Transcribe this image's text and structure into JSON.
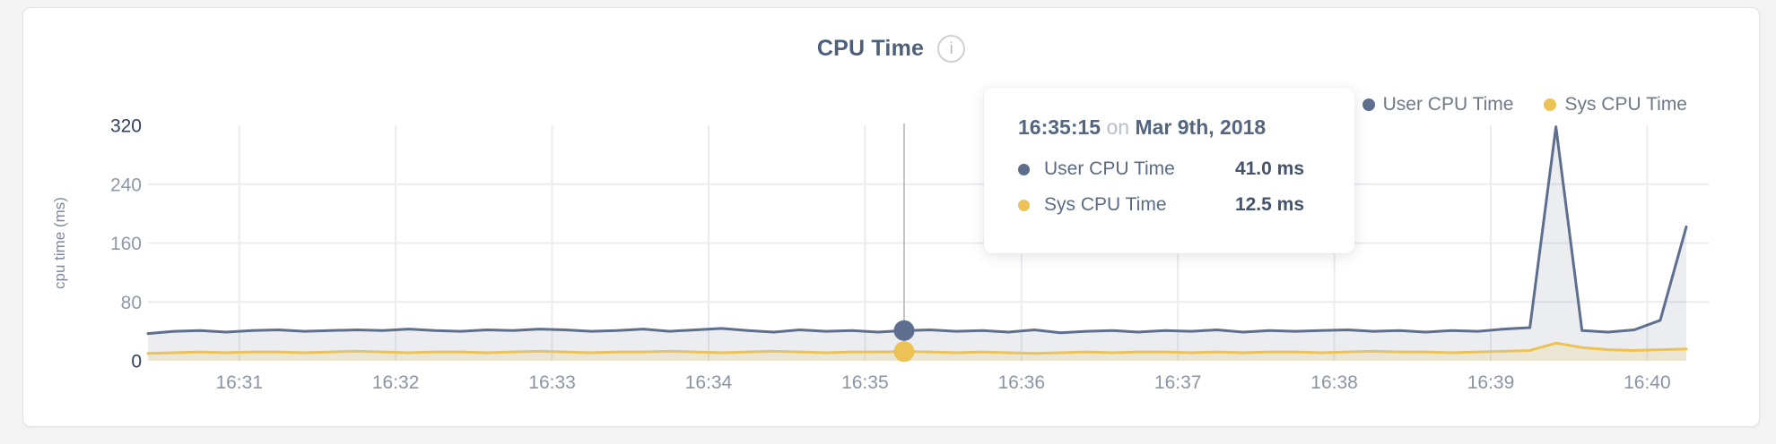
{
  "header": {
    "title": "CPU Time",
    "info_icon": "i"
  },
  "legend": {
    "items": [
      {
        "label": "User CPU Time",
        "color": "#5d6e8e"
      },
      {
        "label": "Sys CPU Time",
        "color": "#ecc254"
      }
    ]
  },
  "tooltip": {
    "time": "16:35:15",
    "connector": "on",
    "date": "Mar 9th, 2018",
    "rows": [
      {
        "label": "User CPU Time",
        "value": "41.0 ms",
        "color": "#5d6e8e"
      },
      {
        "label": "Sys CPU Time",
        "value": "12.5 ms",
        "color": "#ecc254"
      }
    ]
  },
  "chart_data": {
    "type": "area",
    "title": "CPU Time",
    "xlabel": "",
    "ylabel": "cpu time (ms)",
    "ylim": [
      0,
      320
    ],
    "y_ticks": [
      0,
      80,
      160,
      240,
      320
    ],
    "grid": true,
    "legend_position": "top-right",
    "time_start": "16:30:25",
    "interval_s": 10,
    "x_tick_labels": [
      "16:31",
      "16:32",
      "16:33",
      "16:34",
      "16:35",
      "16:36",
      "16:37",
      "16:38",
      "16:39",
      "16:40"
    ],
    "x_tick_offsets_s": [
      35,
      95,
      155,
      215,
      275,
      335,
      395,
      455,
      515,
      575
    ],
    "series": [
      {
        "name": "User CPU Time",
        "color": "#5d6e8e",
        "fill": "rgba(93,110,142,0.12)",
        "values": [
          37,
          40,
          41,
          39,
          41,
          42,
          40,
          41,
          42,
          41,
          43,
          41,
          40,
          42,
          41,
          43,
          42,
          40,
          41,
          43,
          40,
          42,
          44,
          41,
          39,
          42,
          40,
          41,
          39,
          41,
          42,
          40,
          41,
          39,
          42,
          38,
          40,
          41,
          39,
          41,
          40,
          42,
          39,
          41,
          40,
          41,
          42,
          40,
          41,
          39,
          41,
          40,
          43,
          45,
          318,
          41,
          39,
          42,
          55,
          182
        ]
      },
      {
        "name": "Sys CPU Time",
        "color": "#ecc254",
        "fill": "rgba(238,194,84,0.18)",
        "values": [
          10,
          11,
          12,
          11,
          12,
          12,
          11,
          12,
          13,
          12,
          11,
          12,
          12,
          11,
          12,
          13,
          12,
          11,
          12,
          12,
          13,
          12,
          11,
          12,
          13,
          12,
          11,
          12,
          12,
          12.5,
          12,
          11,
          12,
          11,
          10,
          11,
          12,
          11,
          12,
          12,
          11,
          12,
          11,
          12,
          12,
          11,
          12,
          13,
          12,
          12,
          11,
          12,
          13,
          14,
          24,
          18,
          15,
          14,
          15,
          16
        ]
      }
    ],
    "hover": {
      "index": 29,
      "time": "16:35:15",
      "date": "Mar 9th, 2018",
      "values": {
        "user_ms": 41.0,
        "sys_ms": 12.5
      }
    },
    "colors": {
      "gridline": "#ececef",
      "crosshair": "#c0c3c8",
      "tick_label": "#8b94a4",
      "tick_label_emphasis": "#32415c"
    }
  }
}
